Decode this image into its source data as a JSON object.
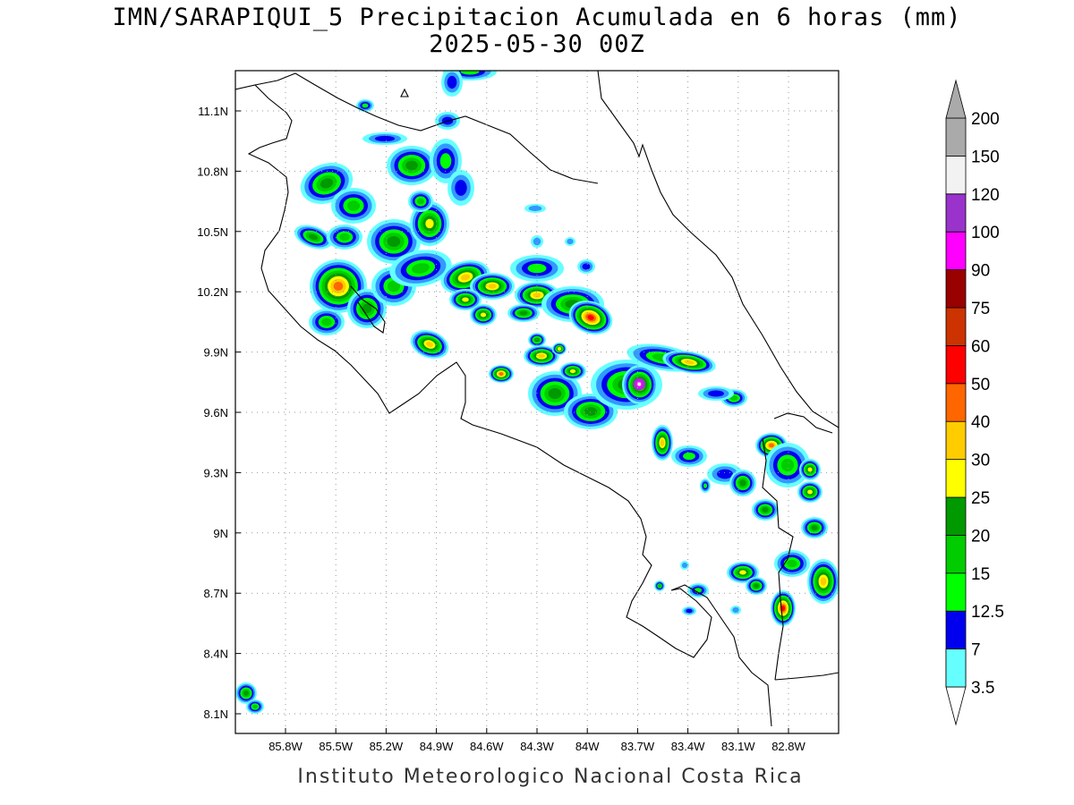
{
  "title": {
    "line1": "IMN/SARAPIQUI_5 Precipitacion Acumulada en 6 horas (mm)",
    "line2": "2025-05-30 00Z"
  },
  "footer": "Instituto Meteorologico Nacional Costa Rica",
  "map": {
    "lon_ticks": [
      "85.8W",
      "85.5W",
      "85.2W",
      "84.9W",
      "84.6W",
      "84.3W",
      "84W",
      "83.7W",
      "83.4W",
      "83.1W",
      "82.8W"
    ],
    "lat_ticks": [
      "11.1N",
      "10.8N",
      "10.5N",
      "10.2N",
      "9.9N",
      "9.6N",
      "9.3N",
      "9N",
      "8.7N",
      "8.4N",
      "8.1N"
    ],
    "lon_values": [
      -85.8,
      -85.5,
      -85.2,
      -84.9,
      -84.6,
      -84.3,
      -84.0,
      -83.7,
      -83.4,
      -83.1,
      -82.8
    ],
    "lat_values": [
      11.1,
      10.8,
      10.5,
      10.2,
      9.9,
      9.6,
      9.3,
      9.0,
      8.7,
      8.4,
      8.1
    ],
    "grid": "dotted",
    "precip_max_location": {
      "lon": -83.69,
      "lat": 9.74,
      "class": "120-150"
    }
  },
  "colorbar": {
    "labels": [
      "3.5",
      "7",
      "12.5",
      "15",
      "20",
      "25",
      "30",
      "40",
      "50",
      "60",
      "75",
      "90",
      "100",
      "120",
      "150",
      "200"
    ],
    "colors": [
      "#66ffff",
      "#3399ff",
      "#0000ee",
      "#00ff00",
      "#00cc00",
      "#009900",
      "#ffff00",
      "#ffcc00",
      "#ff6600",
      "#ff0000",
      "#cc3300",
      "#990000",
      "#ff00ff",
      "#9933cc",
      "#f2f2f2",
      "#aaaaaa"
    ]
  },
  "precip_colors": {
    "c1": "#66ffff",
    "c2": "#3399ff",
    "c3": "#0000ee",
    "c4": "#00ff00",
    "c5": "#00cc00",
    "c6": "#009900",
    "c7": "#ffff00",
    "c8": "#ffcc00",
    "c9": "#ff6600",
    "c10": "#ff0000",
    "c11": "#990000",
    "c12": "#ff00ff"
  }
}
